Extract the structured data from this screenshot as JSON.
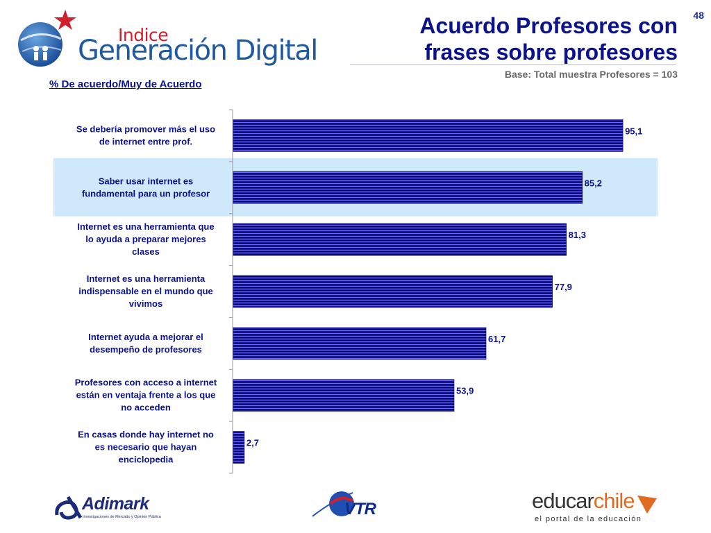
{
  "header": {
    "logo_top": "Indice",
    "logo_main": "Generación Digital",
    "title_line1": "Acuerdo Profesores con",
    "title_line2": "frases sobre profesores",
    "subtitle": "Base: Total muestra Profesores = 103",
    "page_number": "48",
    "chart_label": "% De acuerdo/Muy de Acuerdo"
  },
  "chart_data": {
    "type": "bar",
    "orientation": "horizontal",
    "title": "",
    "xlabel": "",
    "ylabel": "",
    "xlim": [
      0,
      100
    ],
    "highlighted_category_index": 1,
    "categories": [
      [
        "Se debería promover más el uso",
        "de internet entre prof."
      ],
      [
        "Saber usar internet es",
        "fundamental para un profesor"
      ],
      [
        "Internet es una herramienta que",
        "lo ayuda a preparar mejores",
        "clases"
      ],
      [
        "Internet es una herramienta",
        "indispensable en el mundo que",
        "vivimos"
      ],
      [
        "Internet ayuda a mejorar el",
        "desempeño de profesores"
      ],
      [
        "Profesores con acceso a internet",
        "están en ventaja frente a los que",
        "no acceden"
      ],
      [
        "En casas donde hay internet no",
        "es necesario que hayan",
        "enciclopedia"
      ]
    ],
    "values": [
      95.1,
      85.2,
      81.3,
      77.9,
      61.7,
      53.9,
      2.7
    ],
    "data_labels": [
      "95,1",
      "85,2",
      "81,3",
      "77,9",
      "61,7",
      "53,9",
      "2,7"
    ],
    "bar_color": "#1212e0",
    "highlight_color": "#cfe9fb",
    "grid": false
  },
  "footer": {
    "adimark_name": "Adimark",
    "adimark_tag": "Investigaciones de Mercado y Opinión Pública",
    "vtr_name": "VTR",
    "educar_word1": "educar",
    "educar_word2": "chile",
    "educar_tag": "el portal de la educación"
  },
  "colors": {
    "title": "#0a128f",
    "accent_red": "#d21f2b",
    "logo_blue": "#1f5aa0"
  }
}
